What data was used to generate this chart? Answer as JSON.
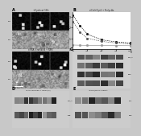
{
  "fig_bg": "#c8c8c8",
  "panel_B": {
    "xlim": [
      0,
      120
    ],
    "ylim": [
      0,
      3.5
    ],
    "xticks": [
      0,
      30,
      60,
      90,
      120
    ],
    "yticks": [
      0,
      1,
      2,
      3
    ],
    "series": [
      {
        "x": [
          0,
          15,
          30,
          60,
          90,
          120
        ],
        "y": [
          3.2,
          2.2,
          1.4,
          0.85,
          0.65,
          0.55
        ],
        "color": "#111111",
        "ls": "--"
      },
      {
        "x": [
          0,
          15,
          30,
          60,
          90,
          120
        ],
        "y": [
          2.6,
          1.6,
          1.0,
          0.7,
          0.55,
          0.45
        ],
        "color": "#555555",
        "ls": "--"
      },
      {
        "x": [
          0,
          15,
          30,
          60,
          90,
          120
        ],
        "y": [
          0.35,
          0.33,
          0.32,
          0.31,
          0.3,
          0.29
        ],
        "color": "#999999",
        "ls": "-"
      }
    ]
  }
}
